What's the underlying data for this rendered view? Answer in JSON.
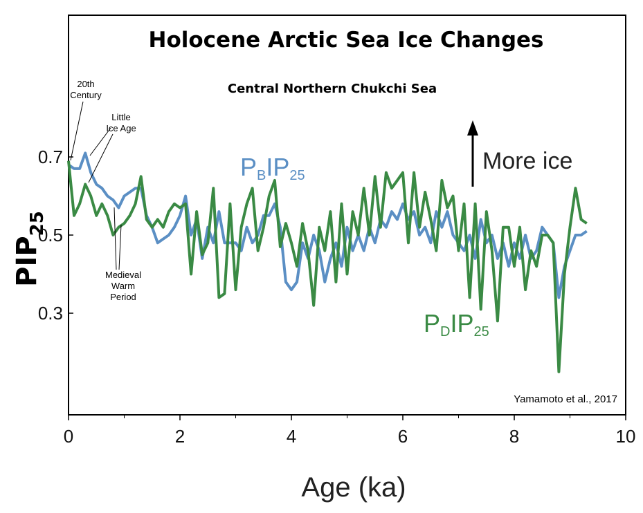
{
  "chart_data": {
    "type": "line",
    "title": "Holocene Arctic Sea Ice Changes",
    "subtitle": "Central Northern Chukchi Sea",
    "xlabel": "Age (ka)",
    "ylabel": "PIP",
    "ylabel_sub": "25",
    "xlim": [
      0,
      10
    ],
    "ylim": [
      0.05,
      0.85
    ],
    "xticks": [
      "0",
      "2",
      "4",
      "6",
      "8",
      "10"
    ],
    "yticks": [
      "0.3",
      "0.5",
      "0.7"
    ],
    "series": [
      {
        "name": "PBIP25",
        "label_main1": "P",
        "label_sub1": "B",
        "label_main2": "IP",
        "label_sub2": "25",
        "color": "#5b8fc4",
        "x": [
          0.0,
          0.1,
          0.2,
          0.3,
          0.4,
          0.5,
          0.6,
          0.7,
          0.8,
          0.9,
          1.0,
          1.1,
          1.2,
          1.3,
          1.4,
          1.5,
          1.6,
          1.7,
          1.8,
          1.9,
          2.0,
          2.1,
          2.2,
          2.3,
          2.4,
          2.5,
          2.6,
          2.7,
          2.8,
          2.9,
          3.0,
          3.1,
          3.2,
          3.3,
          3.4,
          3.5,
          3.6,
          3.7,
          3.8,
          3.9,
          4.0,
          4.1,
          4.2,
          4.3,
          4.4,
          4.5,
          4.6,
          4.7,
          4.8,
          4.9,
          5.0,
          5.1,
          5.2,
          5.3,
          5.4,
          5.5,
          5.6,
          5.7,
          5.8,
          5.9,
          6.0,
          6.1,
          6.2,
          6.3,
          6.4,
          6.5,
          6.6,
          6.7,
          6.8,
          6.9,
          7.0,
          7.1,
          7.2,
          7.3,
          7.4,
          7.5,
          7.6,
          7.7,
          7.8,
          7.9,
          8.0,
          8.1,
          8.2,
          8.3,
          8.4,
          8.5,
          8.6,
          8.7,
          8.8,
          8.9,
          9.0,
          9.1,
          9.2,
          9.3
        ],
        "values": [
          0.68,
          0.67,
          0.67,
          0.71,
          0.66,
          0.63,
          0.62,
          0.6,
          0.59,
          0.57,
          0.6,
          0.61,
          0.62,
          0.62,
          0.55,
          0.52,
          0.48,
          0.49,
          0.5,
          0.52,
          0.55,
          0.6,
          0.5,
          0.54,
          0.44,
          0.52,
          0.48,
          0.56,
          0.48,
          0.48,
          0.48,
          0.46,
          0.52,
          0.48,
          0.5,
          0.55,
          0.55,
          0.58,
          0.52,
          0.38,
          0.36,
          0.38,
          0.48,
          0.44,
          0.5,
          0.46,
          0.38,
          0.44,
          0.48,
          0.42,
          0.52,
          0.46,
          0.5,
          0.46,
          0.52,
          0.48,
          0.54,
          0.52,
          0.56,
          0.54,
          0.58,
          0.54,
          0.56,
          0.5,
          0.52,
          0.48,
          0.56,
          0.52,
          0.56,
          0.5,
          0.48,
          0.46,
          0.5,
          0.44,
          0.54,
          0.48,
          0.5,
          0.44,
          0.48,
          0.42,
          0.48,
          0.44,
          0.5,
          0.44,
          0.46,
          0.52,
          0.5,
          0.48,
          0.34,
          0.42,
          0.46,
          0.5,
          0.5,
          0.51
        ]
      },
      {
        "name": "PDIP25",
        "label_main1": "P",
        "label_sub1": "D",
        "label_main2": "IP",
        "label_sub2": "25",
        "color": "#3a8a44",
        "x": [
          0.0,
          0.1,
          0.2,
          0.3,
          0.4,
          0.5,
          0.6,
          0.7,
          0.8,
          0.9,
          1.0,
          1.1,
          1.2,
          1.3,
          1.4,
          1.5,
          1.6,
          1.7,
          1.8,
          1.9,
          2.0,
          2.1,
          2.2,
          2.3,
          2.4,
          2.5,
          2.6,
          2.7,
          2.8,
          2.9,
          3.0,
          3.1,
          3.2,
          3.3,
          3.4,
          3.5,
          3.6,
          3.7,
          3.8,
          3.9,
          4.0,
          4.1,
          4.2,
          4.3,
          4.4,
          4.5,
          4.6,
          4.7,
          4.8,
          4.9,
          5.0,
          5.1,
          5.2,
          5.3,
          5.4,
          5.5,
          5.6,
          5.7,
          5.8,
          5.9,
          6.0,
          6.1,
          6.2,
          6.3,
          6.4,
          6.5,
          6.6,
          6.7,
          6.8,
          6.9,
          7.0,
          7.1,
          7.2,
          7.3,
          7.4,
          7.5,
          7.6,
          7.7,
          7.8,
          7.9,
          8.0,
          8.1,
          8.2,
          8.3,
          8.4,
          8.5,
          8.6,
          8.7,
          8.8,
          8.9,
          9.0,
          9.1,
          9.2,
          9.3
        ],
        "values": [
          0.69,
          0.55,
          0.58,
          0.63,
          0.6,
          0.55,
          0.58,
          0.55,
          0.5,
          0.52,
          0.53,
          0.55,
          0.58,
          0.65,
          0.54,
          0.52,
          0.54,
          0.52,
          0.56,
          0.58,
          0.57,
          0.58,
          0.4,
          0.56,
          0.45,
          0.48,
          0.62,
          0.34,
          0.35,
          0.58,
          0.36,
          0.52,
          0.58,
          0.62,
          0.46,
          0.52,
          0.6,
          0.64,
          0.47,
          0.53,
          0.48,
          0.42,
          0.53,
          0.46,
          0.32,
          0.52,
          0.46,
          0.56,
          0.38,
          0.58,
          0.4,
          0.56,
          0.5,
          0.62,
          0.5,
          0.65,
          0.52,
          0.66,
          0.62,
          0.64,
          0.66,
          0.48,
          0.66,
          0.52,
          0.61,
          0.54,
          0.46,
          0.64,
          0.57,
          0.6,
          0.46,
          0.58,
          0.34,
          0.58,
          0.31,
          0.56,
          0.46,
          0.28,
          0.52,
          0.52,
          0.42,
          0.52,
          0.36,
          0.46,
          0.42,
          0.5,
          0.5,
          0.48,
          0.15,
          0.4,
          0.52,
          0.62,
          0.54,
          0.53
        ]
      }
    ],
    "annotations": {
      "twentieth_line1": "20th",
      "twentieth_line2": "Century",
      "lia_line1": "Little",
      "lia_line2": "Ice Age",
      "mwp_line1": "Medieval",
      "mwp_line2": "Warm",
      "mwp_line3": "Period",
      "more_ice": "More ice",
      "credit": "Yamamoto et al., 2017"
    }
  }
}
